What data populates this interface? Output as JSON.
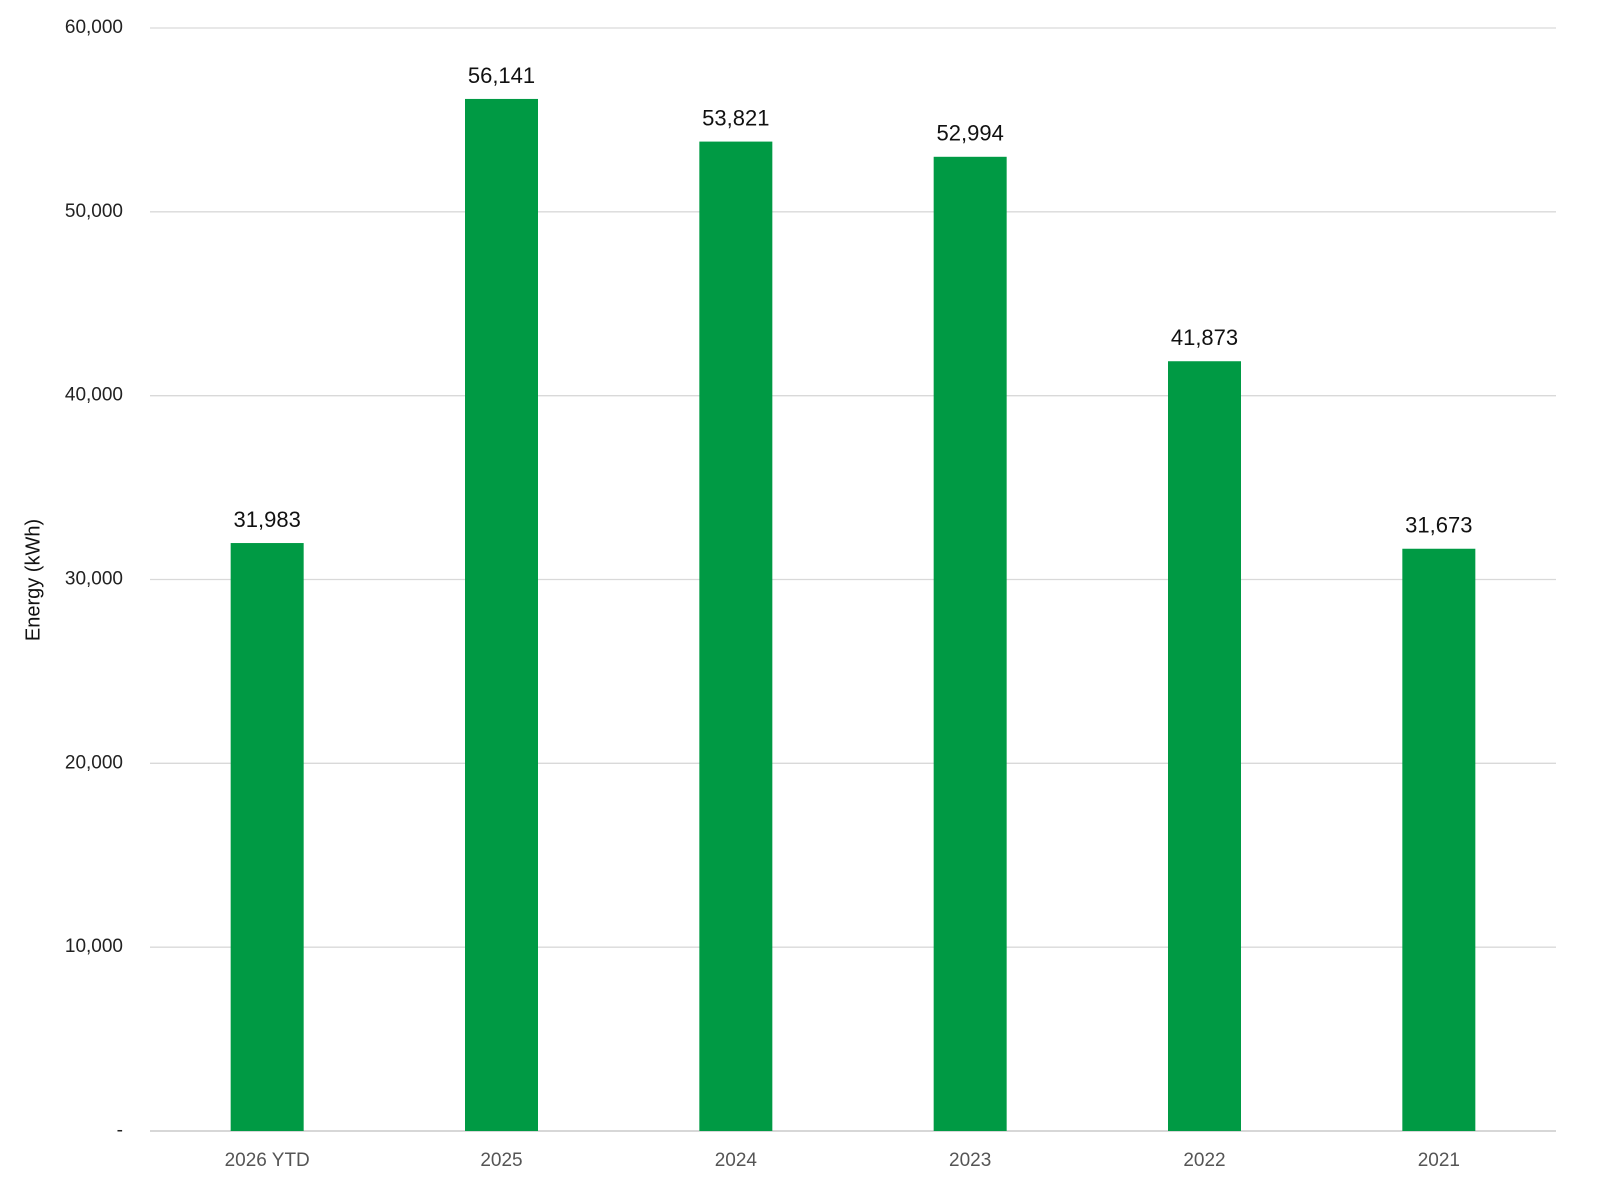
{
  "chart_data": {
    "type": "bar",
    "y_label": "Energy (kWh)",
    "categories": [
      "2026 YTD",
      "2025",
      "2024",
      "2023",
      "2022",
      "2021"
    ],
    "values": [
      31983,
      56141,
      53821,
      52994,
      41873,
      31673
    ],
    "value_labels": [
      "31,983",
      "56,141",
      "53,821",
      "52,994",
      "41,873",
      "31,673"
    ],
    "color": "#009a44",
    "ylim": [
      0,
      60000
    ],
    "yticks": [
      {
        "value": 0,
        "label": "-"
      },
      {
        "value": 10000,
        "label": "10,000"
      },
      {
        "value": 20000,
        "label": "20,000"
      },
      {
        "value": 30000,
        "label": "30,000"
      },
      {
        "value": 40000,
        "label": "40,000"
      },
      {
        "value": 50000,
        "label": "50,000"
      },
      {
        "value": 60000,
        "label": "60,000"
      }
    ],
    "grid": true
  }
}
